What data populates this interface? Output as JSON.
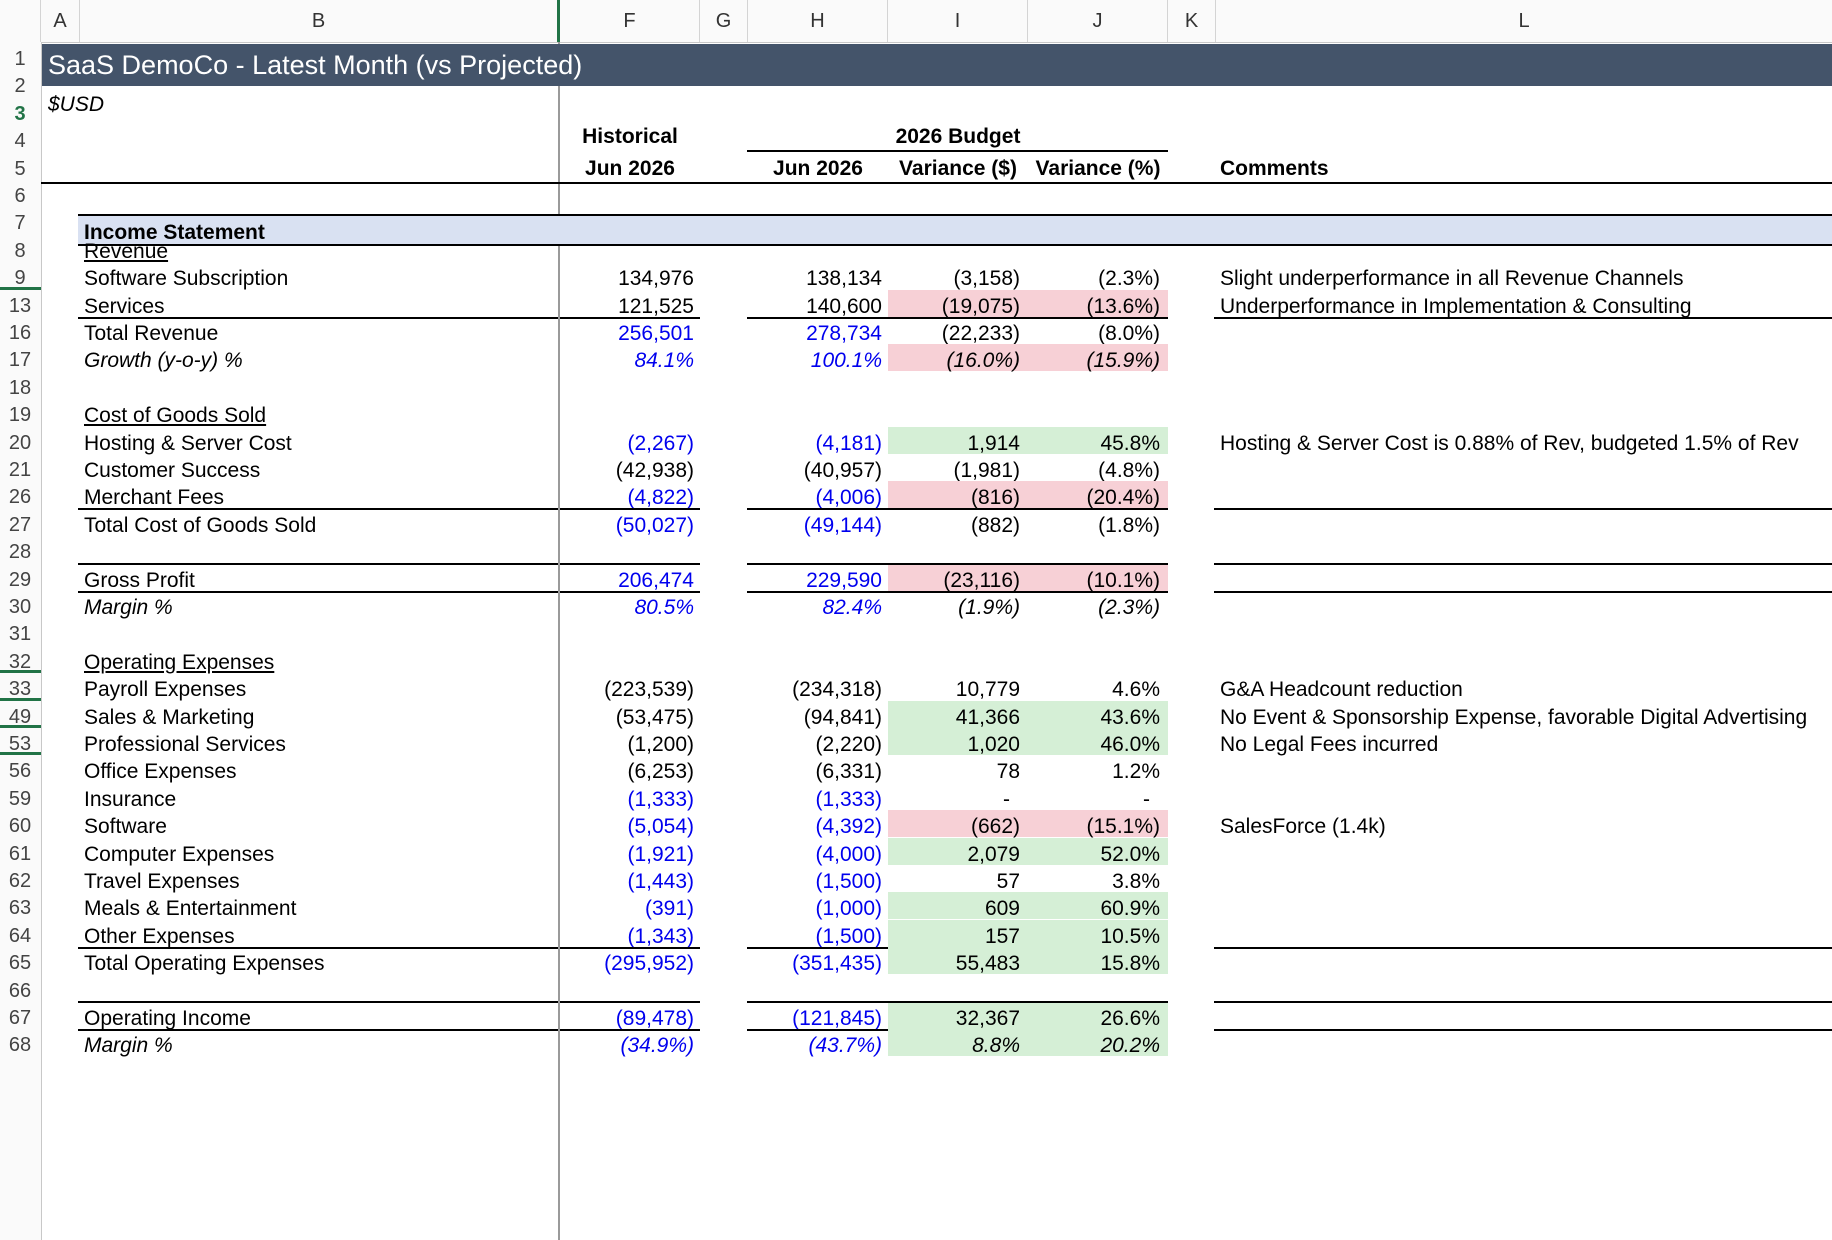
{
  "columns": [
    "A",
    "B",
    "F",
    "G",
    "H",
    "I",
    "J",
    "K",
    "L"
  ],
  "title": "SaaS DemoCo - Latest Month (vs Projected)",
  "currency": "$USD",
  "headers": {
    "historical": "Historical",
    "budget": "2026 Budget",
    "hist_period": "Jun 2026",
    "budget_period": "Jun 2026",
    "var_dollar": "Variance ($)",
    "var_pct": "Variance (%)",
    "comments": "Comments"
  },
  "section_title": "Income Statement",
  "rows": [
    {
      "n": "1"
    },
    {
      "n": "2"
    },
    {
      "n": "3"
    },
    {
      "n": "4"
    },
    {
      "n": "5"
    },
    {
      "n": "6"
    },
    {
      "n": "7"
    },
    {
      "n": "8",
      "label": "Revenue"
    },
    {
      "n": "9",
      "label": "Software Subscription",
      "f": "134,976",
      "h": "138,134",
      "i": "(3,158)",
      "j": "(2.3%)",
      "comment": "Slight underperformance in all Revenue Channels"
    },
    {
      "n": "13",
      "label": "Services",
      "f": "121,525",
      "h": "140,600",
      "i": "(19,075)",
      "j": "(13.6%)",
      "comment": "Underperformance in Implementation & Consulting"
    },
    {
      "n": "16",
      "label": "Total Revenue",
      "f": "256,501",
      "h": "278,734",
      "i": "(22,233)",
      "j": "(8.0%)"
    },
    {
      "n": "17",
      "label": "Growth (y-o-y) %",
      "f": "84.1%",
      "h": "100.1%",
      "i": "(16.0%)",
      "j": "(15.9%)"
    },
    {
      "n": "18"
    },
    {
      "n": "19",
      "label": "Cost of Goods Sold"
    },
    {
      "n": "20",
      "label": "Hosting & Server Cost",
      "f": "(2,267)",
      "h": "(4,181)",
      "i": "1,914",
      "j": "45.8%",
      "comment": "Hosting & Server Cost is 0.88% of Rev, budgeted 1.5% of Rev"
    },
    {
      "n": "21",
      "label": "Customer Success",
      "f": "(42,938)",
      "h": "(40,957)",
      "i": "(1,981)",
      "j": "(4.8%)"
    },
    {
      "n": "26",
      "label": "Merchant Fees",
      "f": "(4,822)",
      "h": "(4,006)",
      "i": "(816)",
      "j": "(20.4%)"
    },
    {
      "n": "27",
      "label": "Total Cost of Goods Sold",
      "f": "(50,027)",
      "h": "(49,144)",
      "i": "(882)",
      "j": "(1.8%)"
    },
    {
      "n": "28"
    },
    {
      "n": "29",
      "label": "Gross Profit",
      "f": "206,474",
      "h": "229,590",
      "i": "(23,116)",
      "j": "(10.1%)"
    },
    {
      "n": "30",
      "label": "Margin %",
      "f": "80.5%",
      "h": "82.4%",
      "i": "(1.9%)",
      "j": "(2.3%)"
    },
    {
      "n": "31"
    },
    {
      "n": "32",
      "label": "Operating Expenses"
    },
    {
      "n": "33",
      "label": "Payroll Expenses",
      "f": "(223,539)",
      "h": "(234,318)",
      "i": "10,779",
      "j": "4.6%",
      "comment": "G&A Headcount reduction"
    },
    {
      "n": "49",
      "label": "Sales & Marketing",
      "f": "(53,475)",
      "h": "(94,841)",
      "i": "41,366",
      "j": "43.6%",
      "comment": "No Event & Sponsorship Expense, favorable Digital Advertising"
    },
    {
      "n": "53",
      "label": "Professional Services",
      "f": "(1,200)",
      "h": "(2,220)",
      "i": "1,020",
      "j": "46.0%",
      "comment": "No Legal Fees incurred"
    },
    {
      "n": "56",
      "label": "Office Expenses",
      "f": "(6,253)",
      "h": "(6,331)",
      "i": "78",
      "j": "1.2%"
    },
    {
      "n": "59",
      "label": "Insurance",
      "f": "(1,333)",
      "h": "(1,333)",
      "i": "-",
      "j": "-"
    },
    {
      "n": "60",
      "label": "Software",
      "f": "(5,054)",
      "h": "(4,392)",
      "i": "(662)",
      "j": "(15.1%)",
      "comment": "SalesForce (1.4k)"
    },
    {
      "n": "61",
      "label": "Computer Expenses",
      "f": "(1,921)",
      "h": "(4,000)",
      "i": "2,079",
      "j": "52.0%"
    },
    {
      "n": "62",
      "label": "Travel Expenses",
      "f": "(1,443)",
      "h": "(1,500)",
      "i": "57",
      "j": "3.8%"
    },
    {
      "n": "63",
      "label": "Meals & Entertainment",
      "f": "(391)",
      "h": "(1,000)",
      "i": "609",
      "j": "60.9%"
    },
    {
      "n": "64",
      "label": "Other Expenses",
      "f": "(1,343)",
      "h": "(1,500)",
      "i": "157",
      "j": "10.5%"
    },
    {
      "n": "65",
      "label": "Total Operating Expenses",
      "f": "(295,952)",
      "h": "(351,435)",
      "i": "55,483",
      "j": "15.8%"
    },
    {
      "n": "66"
    },
    {
      "n": "67",
      "label": "Operating Income",
      "f": "(89,478)",
      "h": "(121,845)",
      "i": "32,367",
      "j": "26.6%"
    },
    {
      "n": "68",
      "label": "Margin %",
      "f": "(34.9%)",
      "h": "(43.7%)",
      "i": "8.8%",
      "j": "20.2%"
    }
  ],
  "colors": {
    "title_bar": "#44546a",
    "section_bar": "#d9e1f2",
    "favorable": "#d5efd6",
    "unfavorable": "#f7d0d6",
    "input_blue": "#0000ee",
    "selected_row": "#217346"
  }
}
